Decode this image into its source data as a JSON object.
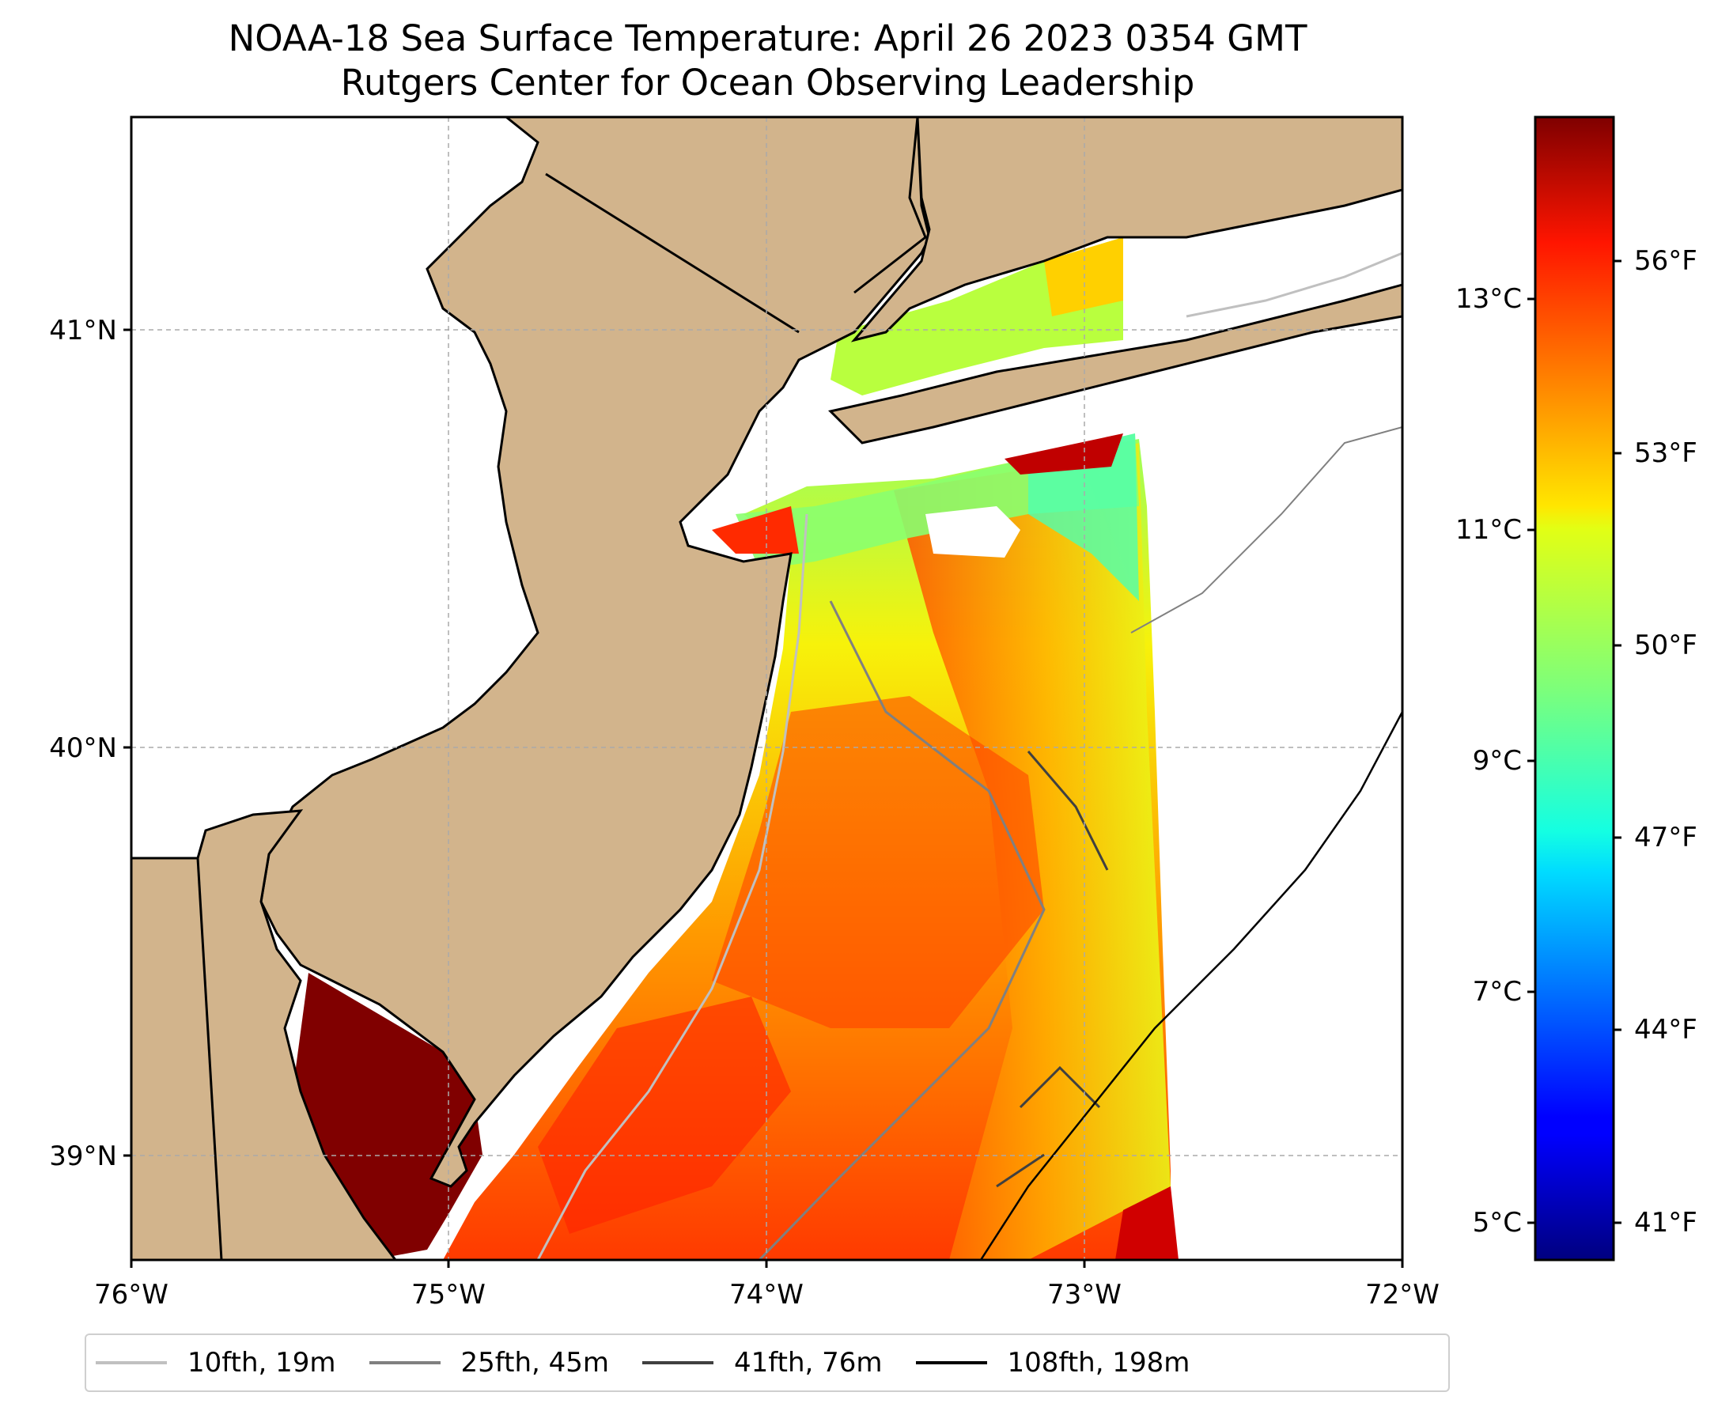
{
  "title": {
    "line1": "NOAA-18 Sea Surface Temperature: April 26 2023 0354 GMT",
    "line2": "Rutgers Center for Ocean Observing Leadership"
  },
  "map": {
    "lon_range": [
      -76,
      -72
    ],
    "lat_range": [
      38.7,
      41.5
    ],
    "x_tick_labels": [
      "76°W",
      "75°W",
      "74°W",
      "73°W",
      "72°W"
    ],
    "y_tick_labels": [
      "39°N",
      "40°N",
      "41°N"
    ],
    "gridlines": true,
    "colors": {
      "land": "#D2B48C",
      "ocean_no_data": "#ffffff",
      "coastline": "#000000",
      "gridline": "#aaaaaa"
    }
  },
  "colorbar": {
    "colormap": "jet",
    "celsius_labels": [
      "13°C",
      "11°C",
      "9°C",
      "7°C",
      "5°C"
    ],
    "fahrenheit_labels": [
      "56°F",
      "53°F",
      "50°F",
      "47°F",
      "44°F",
      "41°F"
    ],
    "celsius_values": [
      13,
      11,
      9,
      7,
      5
    ],
    "fahrenheit_values": [
      56,
      53,
      50,
      47,
      44,
      41
    ],
    "range_celsius": [
      4.7,
      14.6
    ]
  },
  "legend": {
    "items": [
      {
        "label": "10fth, 19m",
        "color": "#c0c0c0"
      },
      {
        "label": "25fth, 45m",
        "color": "#808080"
      },
      {
        "label": "41fth, 76m",
        "color": "#404040"
      },
      {
        "label": "108fth, 198m",
        "color": "#000000"
      }
    ]
  }
}
